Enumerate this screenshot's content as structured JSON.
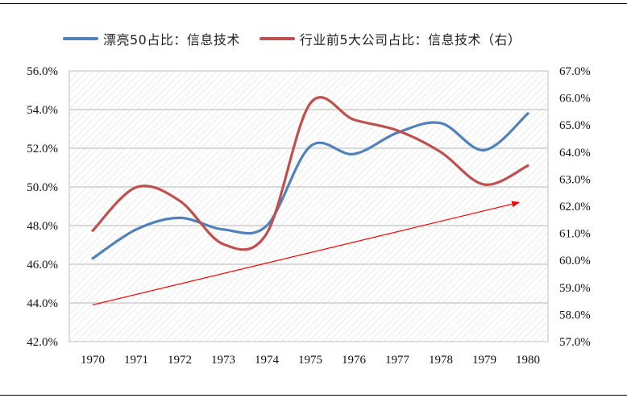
{
  "chart_data": {
    "type": "line",
    "categories": [
      "1970",
      "1971",
      "1972",
      "1973",
      "1974",
      "1975",
      "1976",
      "1977",
      "1978",
      "1979",
      "1980"
    ],
    "series": [
      {
        "name": "漂亮50占比：信息技术",
        "axis": "left",
        "color": "#4f81bd",
        "values": [
          46.3,
          47.8,
          48.4,
          47.8,
          48.0,
          52.1,
          51.7,
          52.8,
          53.3,
          51.9,
          53.8
        ]
      },
      {
        "name": "行业前5大公司占比：信息技术（右）",
        "axis": "right",
        "color": "#c0504d",
        "values": [
          61.1,
          62.7,
          62.2,
          60.6,
          61.0,
          65.8,
          65.2,
          64.8,
          64.0,
          62.8,
          63.5
        ]
      }
    ],
    "y_left": {
      "min": 42,
      "max": 56,
      "step": 2,
      "tick_labels": [
        "42.0%",
        "44.0%",
        "46.0%",
        "48.0%",
        "50.0%",
        "52.0%",
        "54.0%",
        "56.0%"
      ]
    },
    "y_right": {
      "min": 57,
      "max": 67,
      "step": 1,
      "tick_labels": [
        "57.0%",
        "58.0%",
        "59.0%",
        "60.0%",
        "61.0%",
        "62.0%",
        "63.0%",
        "64.0%",
        "65.0%",
        "66.0%",
        "67.0%"
      ]
    },
    "annotation": {
      "type": "arrow",
      "color": "#ff0000",
      "from": {
        "x": "1970",
        "y_left": 43.9
      },
      "to": {
        "x": "1979.8",
        "y_left": 49.2
      }
    },
    "legend_position": "top",
    "grid": "horizontal",
    "background": "hatched"
  }
}
